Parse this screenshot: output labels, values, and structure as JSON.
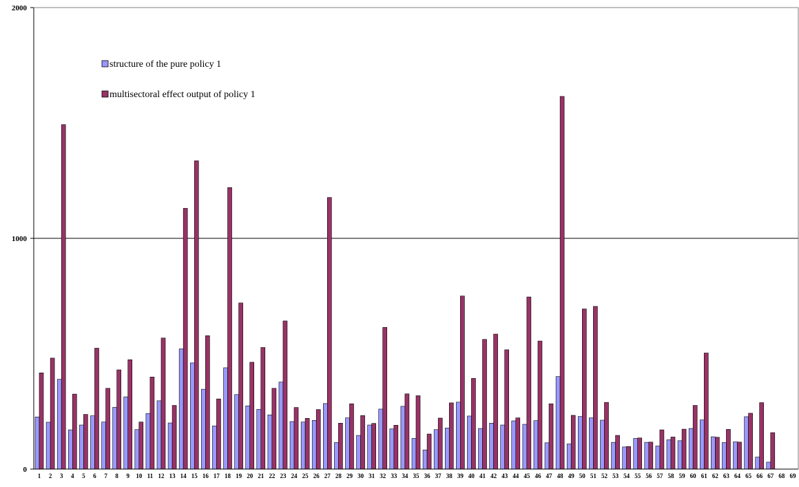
{
  "chart_data": {
    "type": "bar",
    "title": "",
    "xlabel": "",
    "ylabel": "",
    "ylim": [
      0,
      2000
    ],
    "yticks": [
      "0",
      "1000",
      "2000"
    ],
    "grid": "horizontal",
    "legend_position": "top-left",
    "categories": [
      "1",
      "2",
      "3",
      "4",
      "5",
      "6",
      "7",
      "8",
      "9",
      "10",
      "11",
      "12",
      "13",
      "14",
      "15",
      "16",
      "17",
      "18",
      "19",
      "20",
      "21",
      "22",
      "23",
      "24",
      "25",
      "26",
      "27",
      "28",
      "29",
      "30",
      "31",
      "32",
      "33",
      "34",
      "35",
      "36",
      "37",
      "38",
      "39",
      "40",
      "41",
      "42",
      "43",
      "44",
      "45",
      "46",
      "47",
      "48",
      "49",
      "50",
      "51",
      "52",
      "53",
      "54",
      "55",
      "56",
      "57",
      "58",
      "59",
      "60",
      "61",
      "62",
      "63",
      "64",
      "65",
      "66",
      "67",
      "68",
      "69"
    ],
    "series": [
      {
        "name": "structure of the pure policy 1",
        "color": "#9999ff",
        "values": [
          226,
          203,
          389,
          170,
          191,
          231,
          204,
          268,
          313,
          171,
          241,
          296,
          200,
          521,
          460,
          346,
          187,
          439,
          323,
          274,
          259,
          235,
          377,
          206,
          204,
          211,
          284,
          115,
          222,
          146,
          191,
          260,
          174,
          272,
          133,
          83,
          171,
          178,
          290,
          230,
          176,
          199,
          191,
          209,
          194,
          210,
          114,
          401,
          109,
          228,
          222,
          212,
          116,
          96,
          133,
          116,
          100,
          127,
          123,
          176,
          213,
          140,
          115,
          118,
          227,
          52,
          30,
          0,
          0
        ]
      },
      {
        "name": "multisectoral effect output of policy 1",
        "color": "#993366",
        "values": [
          417,
          481,
          1493,
          325,
          237,
          524,
          350,
          430,
          474,
          204,
          399,
          568,
          276,
          1130,
          1336,
          578,
          304,
          1220,
          720,
          463,
          527,
          350,
          642,
          267,
          220,
          258,
          1177,
          199,
          283,
          232,
          198,
          614,
          190,
          326,
          318,
          152,
          221,
          287,
          750,
          393,
          562,
          585,
          517,
          222,
          746,
          555,
          283,
          1615,
          233,
          694,
          705,
          289,
          146,
          98,
          135,
          117,
          170,
          139,
          173,
          276,
          503,
          138,
          172,
          117,
          242,
          288,
          158,
          0,
          0
        ]
      }
    ]
  }
}
